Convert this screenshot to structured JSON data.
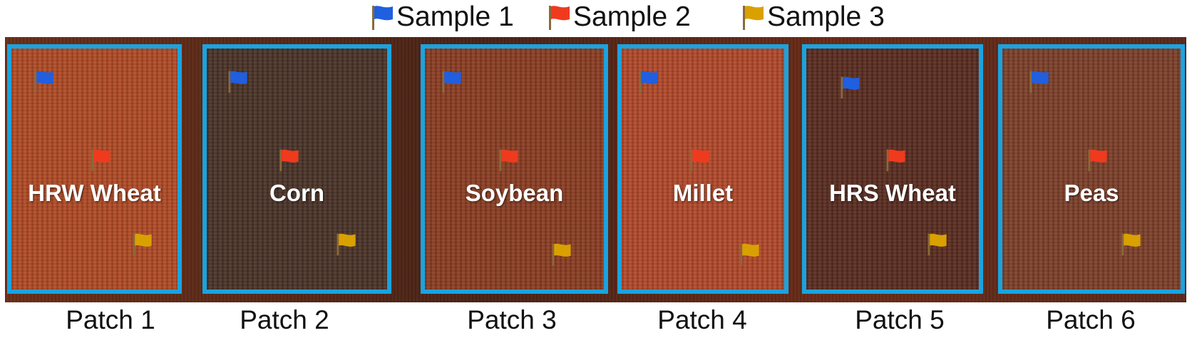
{
  "legend": [
    {
      "label": "Sample 1",
      "color": "#1f5fe0"
    },
    {
      "label": "Sample 2",
      "color": "#f03a1e"
    },
    {
      "label": "Sample 3",
      "color": "#d9a100"
    }
  ],
  "patches": [
    {
      "caption": "Patch 1",
      "crop": "HRW Wheat",
      "tone": "#b04a25"
    },
    {
      "caption": "Patch 2",
      "crop": "Corn",
      "tone": "#4a3328"
    },
    {
      "caption": "Patch 3",
      "crop": "Soybean",
      "tone": "#8a3d22"
    },
    {
      "caption": "Patch 4",
      "crop": "Millet",
      "tone": "#b1482a"
    },
    {
      "caption": "Patch 5",
      "crop": "HRS Wheat",
      "tone": "#5a2c20"
    },
    {
      "caption": "Patch 6",
      "crop": "Peas",
      "tone": "#7c3f29"
    }
  ],
  "colors": {
    "patch_border": "#1aa3e0",
    "crop_label": "#ffffff"
  }
}
